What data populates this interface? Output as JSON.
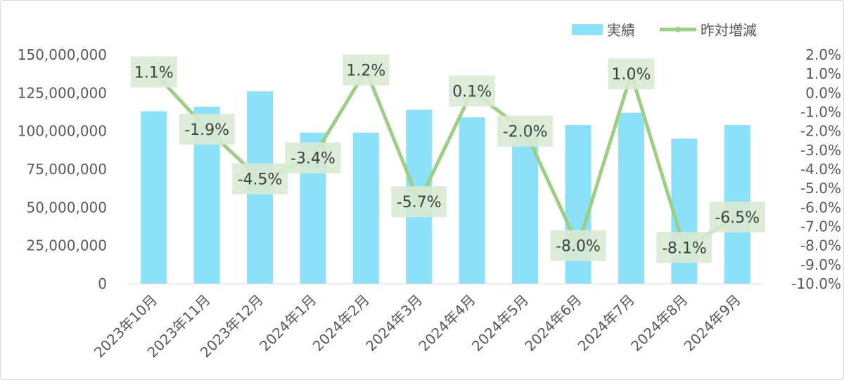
{
  "chart_data": {
    "type": "bar",
    "combo": "bar + line (secondary axis)",
    "categories": [
      "2023年10月",
      "2023年11月",
      "2023年12月",
      "2024年1月",
      "2024年2月",
      "2024年3月",
      "2024年4月",
      "2024年5月",
      "2024年6月",
      "2024年7月",
      "2024年8月",
      "2024年9月"
    ],
    "series": [
      {
        "name": "実績",
        "type": "bar",
        "axis": "left",
        "color": "#8be0fa",
        "values": [
          113000000,
          116000000,
          126000000,
          99000000,
          99000000,
          114000000,
          109000000,
          104000000,
          104000000,
          112000000,
          95000000,
          104000000
        ]
      },
      {
        "name": "昨対増減",
        "type": "line",
        "axis": "right",
        "color": "#9ccf82",
        "values": [
          1.1,
          -1.9,
          -4.5,
          -3.4,
          1.2,
          -5.7,
          0.1,
          -2.0,
          -8.0,
          1.0,
          -8.1,
          -6.5
        ],
        "labels": [
          "1.1%",
          "-1.9%",
          "-4.5%",
          "-3.4%",
          "1.2%",
          "-5.7%",
          "0.1%",
          "-2.0%",
          "-8.0%",
          "1.0%",
          "-8.1%",
          "-6.5%"
        ]
      }
    ],
    "y_left": {
      "range": [
        0,
        150000000
      ],
      "ticks": [
        "0",
        "25,000,000",
        "50,000,000",
        "75,000,000",
        "100,000,000",
        "125,000,000",
        "150,000,000"
      ]
    },
    "y_right": {
      "range": [
        -10.0,
        2.0
      ],
      "ticks": [
        "-10.0%",
        "-9.0%",
        "-8.0%",
        "-7.0%",
        "-6.0%",
        "-5.0%",
        "-4.0%",
        "-3.0%",
        "-2.0%",
        "-1.0%",
        "0.0%",
        "1.0%",
        "2.0%"
      ]
    },
    "legend_position": "top-right",
    "grid": false,
    "label_box_color": "#d9ead3"
  }
}
